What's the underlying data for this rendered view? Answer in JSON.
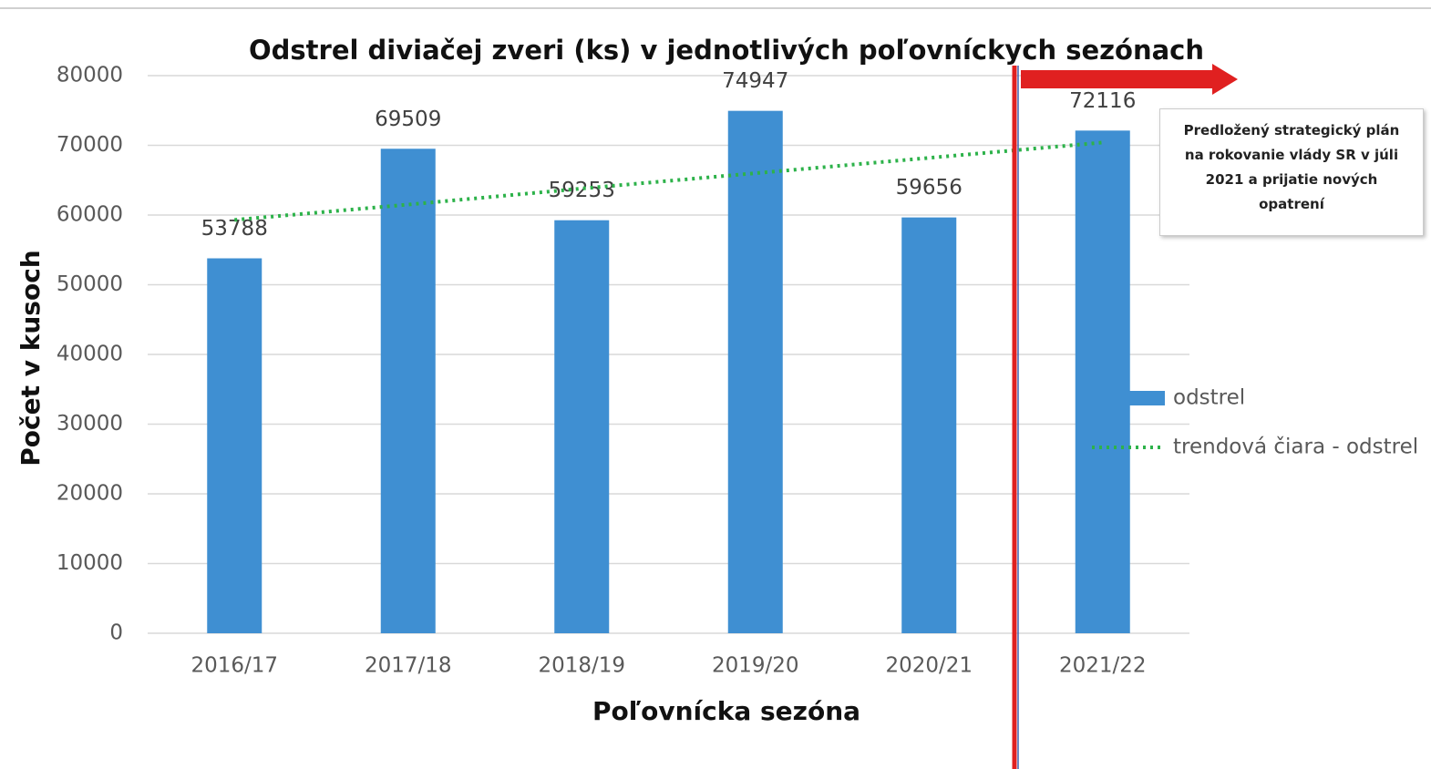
{
  "chart_data": {
    "type": "bar",
    "title": "Odstrel diviačej zveri (ks) v jednotlivých poľovníckych sezónach",
    "x_label": "Poľovnícka sezóna",
    "y_label": "Počet v kusoch",
    "categories": [
      "2016/17",
      "2017/18",
      "2018/19",
      "2019/20",
      "2020/21",
      "2021/22"
    ],
    "series": [
      {
        "name": "odstrel",
        "type": "bar",
        "color": "#3f8fd2",
        "values": [
          53788,
          69509,
          59253,
          74947,
          59656,
          72116
        ]
      },
      {
        "name": "trendová čiara - odstrel",
        "type": "line",
        "dash": "dotted",
        "color": "#2db24a",
        "values": [
          59300,
          61500,
          63800,
          66000,
          68200,
          70400
        ]
      }
    ],
    "ylim": [
      0,
      80000
    ],
    "yticks": [
      0,
      10000,
      20000,
      30000,
      40000,
      50000,
      60000,
      70000,
      80000
    ],
    "grid": true,
    "legend": "right",
    "annotation": "Predložený strategický plán na rokovanie vlády SR v júli 2021 a prijatie nových opatrení"
  }
}
